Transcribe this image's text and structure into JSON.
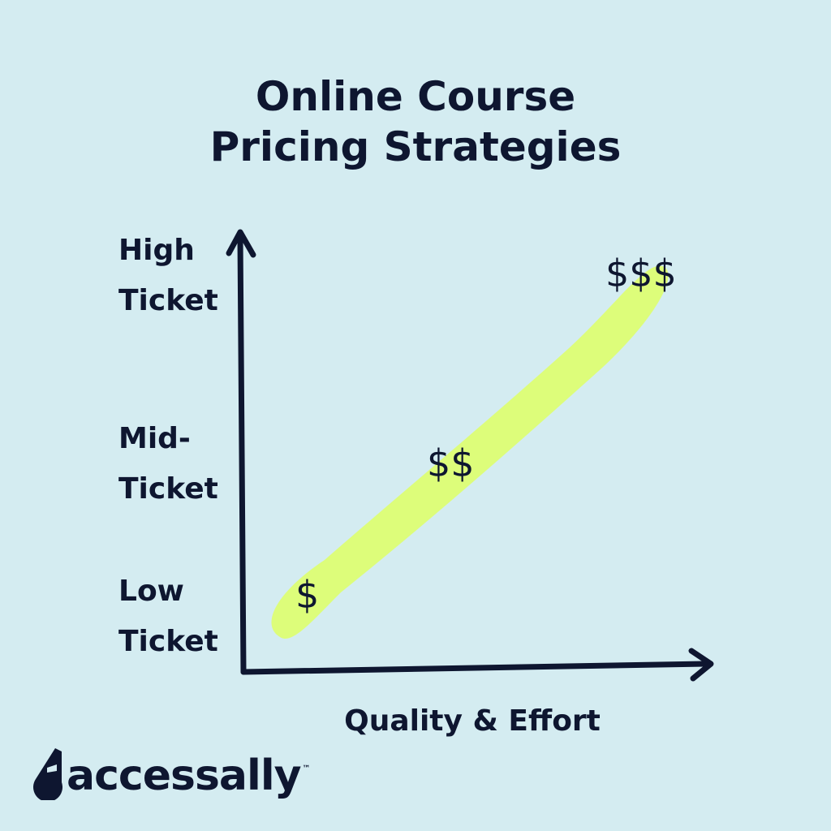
{
  "title": {
    "line1": "Online Course",
    "line2": "Pricing Strategies"
  },
  "y_axis": {
    "labels": [
      {
        "line1": "High",
        "line2": "Ticket"
      },
      {
        "line1": "Mid-",
        "line2": "Ticket"
      },
      {
        "line1": "Low",
        "line2": "Ticket"
      }
    ]
  },
  "x_axis": {
    "label": "Quality & Effort"
  },
  "tiers": {
    "low": "$",
    "mid": "$$",
    "high": "$$$"
  },
  "logo": {
    "text": "accessally",
    "tm": "™"
  },
  "colors": {
    "background": "#d4ecf1",
    "ink": "#0e1630",
    "highlight": "#ddfd7a"
  }
}
